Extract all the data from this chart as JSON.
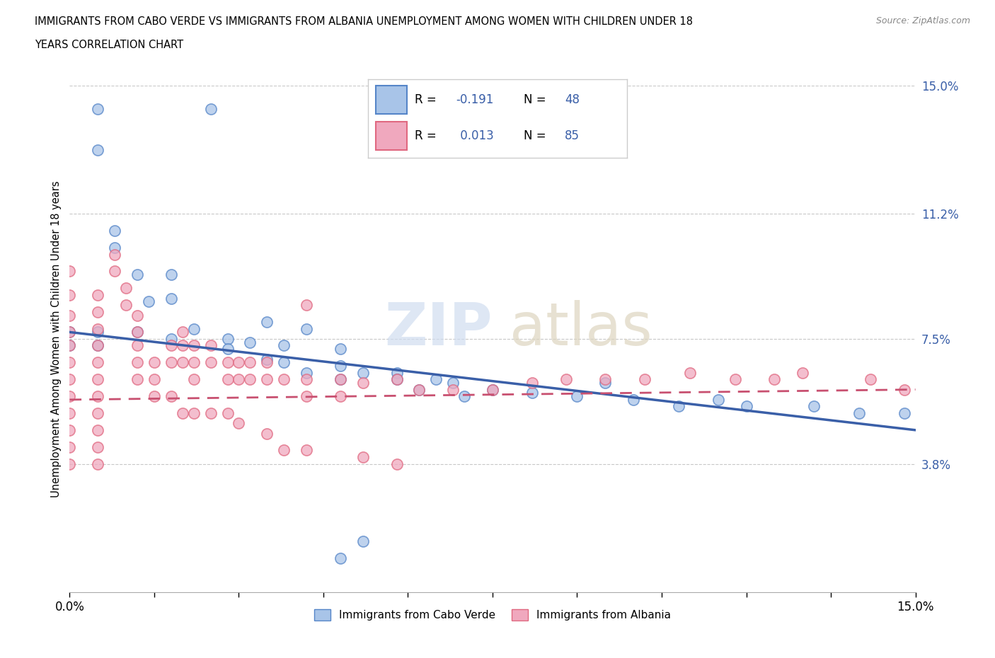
{
  "title_line1": "IMMIGRANTS FROM CABO VERDE VS IMMIGRANTS FROM ALBANIA UNEMPLOYMENT AMONG WOMEN WITH CHILDREN UNDER 18",
  "title_line2": "YEARS CORRELATION CHART",
  "source": "Source: ZipAtlas.com",
  "ylabel": "Unemployment Among Women with Children Under 18 years",
  "xlim": [
    0.0,
    0.15
  ],
  "ylim": [
    0.0,
    0.15
  ],
  "yticks": [
    0.038,
    0.075,
    0.112,
    0.15
  ],
  "ytick_labels": [
    "3.8%",
    "7.5%",
    "11.2%",
    "15.0%"
  ],
  "xticks": [
    0.0,
    0.015,
    0.03,
    0.045,
    0.06,
    0.075,
    0.09,
    0.105,
    0.12,
    0.135,
    0.15
  ],
  "xtick_labels": [
    "0.0%",
    "",
    "",
    "",
    "",
    "",
    "",
    "",
    "",
    "",
    "15.0%"
  ],
  "hlines": [
    0.038,
    0.075,
    0.112,
    0.15
  ],
  "cabo_verde_color": "#a8c4e8",
  "albania_color": "#f0a8be",
  "cabo_verde_edge_color": "#5585c8",
  "albania_edge_color": "#e06880",
  "cabo_verde_line_color": "#3a5fa8",
  "albania_line_color": "#c85070",
  "cabo_verde_R": "-0.191",
  "cabo_verde_N": "48",
  "albania_R": "0.013",
  "albania_N": "85",
  "cv_trend_x": [
    0.0,
    0.15
  ],
  "cv_trend_y": [
    0.077,
    0.048
  ],
  "alb_trend_x": [
    0.0,
    0.15
  ],
  "alb_trend_y": [
    0.057,
    0.06
  ],
  "cabo_verde_scatter": [
    [
      0.005,
      0.143
    ],
    [
      0.005,
      0.131
    ],
    [
      0.008,
      0.107
    ],
    [
      0.008,
      0.102
    ],
    [
      0.025,
      0.143
    ],
    [
      0.012,
      0.094
    ],
    [
      0.014,
      0.086
    ],
    [
      0.018,
      0.094
    ],
    [
      0.018,
      0.087
    ],
    [
      0.0,
      0.077
    ],
    [
      0.0,
      0.073
    ],
    [
      0.005,
      0.077
    ],
    [
      0.005,
      0.073
    ],
    [
      0.012,
      0.077
    ],
    [
      0.018,
      0.075
    ],
    [
      0.022,
      0.078
    ],
    [
      0.028,
      0.075
    ],
    [
      0.028,
      0.072
    ],
    [
      0.032,
      0.074
    ],
    [
      0.035,
      0.069
    ],
    [
      0.038,
      0.073
    ],
    [
      0.042,
      0.078
    ],
    [
      0.048,
      0.072
    ],
    [
      0.048,
      0.067
    ],
    [
      0.052,
      0.065
    ],
    [
      0.058,
      0.065
    ],
    [
      0.065,
      0.063
    ],
    [
      0.048,
      0.063
    ],
    [
      0.058,
      0.063
    ],
    [
      0.068,
      0.062
    ],
    [
      0.075,
      0.06
    ],
    [
      0.082,
      0.059
    ],
    [
      0.09,
      0.058
    ],
    [
      0.095,
      0.062
    ],
    [
      0.1,
      0.057
    ],
    [
      0.108,
      0.055
    ],
    [
      0.115,
      0.057
    ],
    [
      0.12,
      0.055
    ],
    [
      0.132,
      0.055
    ],
    [
      0.14,
      0.053
    ],
    [
      0.148,
      0.053
    ],
    [
      0.062,
      0.06
    ],
    [
      0.07,
      0.058
    ],
    [
      0.052,
      0.015
    ],
    [
      0.048,
      0.01
    ],
    [
      0.035,
      0.08
    ],
    [
      0.038,
      0.068
    ],
    [
      0.042,
      0.065
    ]
  ],
  "albania_scatter": [
    [
      0.0,
      0.095
    ],
    [
      0.0,
      0.088
    ],
    [
      0.0,
      0.082
    ],
    [
      0.0,
      0.077
    ],
    [
      0.0,
      0.073
    ],
    [
      0.0,
      0.068
    ],
    [
      0.0,
      0.063
    ],
    [
      0.0,
      0.058
    ],
    [
      0.0,
      0.053
    ],
    [
      0.0,
      0.048
    ],
    [
      0.0,
      0.043
    ],
    [
      0.0,
      0.038
    ],
    [
      0.005,
      0.088
    ],
    [
      0.005,
      0.083
    ],
    [
      0.005,
      0.078
    ],
    [
      0.005,
      0.073
    ],
    [
      0.005,
      0.068
    ],
    [
      0.005,
      0.063
    ],
    [
      0.005,
      0.058
    ],
    [
      0.005,
      0.053
    ],
    [
      0.005,
      0.048
    ],
    [
      0.005,
      0.043
    ],
    [
      0.005,
      0.038
    ],
    [
      0.008,
      0.1
    ],
    [
      0.008,
      0.095
    ],
    [
      0.01,
      0.09
    ],
    [
      0.01,
      0.085
    ],
    [
      0.012,
      0.082
    ],
    [
      0.012,
      0.077
    ],
    [
      0.012,
      0.073
    ],
    [
      0.012,
      0.068
    ],
    [
      0.015,
      0.068
    ],
    [
      0.015,
      0.063
    ],
    [
      0.018,
      0.073
    ],
    [
      0.018,
      0.068
    ],
    [
      0.02,
      0.077
    ],
    [
      0.02,
      0.073
    ],
    [
      0.02,
      0.068
    ],
    [
      0.022,
      0.073
    ],
    [
      0.022,
      0.068
    ],
    [
      0.022,
      0.063
    ],
    [
      0.025,
      0.073
    ],
    [
      0.025,
      0.068
    ],
    [
      0.028,
      0.068
    ],
    [
      0.028,
      0.063
    ],
    [
      0.03,
      0.068
    ],
    [
      0.03,
      0.063
    ],
    [
      0.032,
      0.068
    ],
    [
      0.032,
      0.063
    ],
    [
      0.035,
      0.068
    ],
    [
      0.035,
      0.063
    ],
    [
      0.038,
      0.063
    ],
    [
      0.042,
      0.063
    ],
    [
      0.042,
      0.058
    ],
    [
      0.048,
      0.063
    ],
    [
      0.048,
      0.058
    ],
    [
      0.052,
      0.062
    ],
    [
      0.058,
      0.063
    ],
    [
      0.062,
      0.06
    ],
    [
      0.068,
      0.06
    ],
    [
      0.075,
      0.06
    ],
    [
      0.082,
      0.062
    ],
    [
      0.088,
      0.063
    ],
    [
      0.095,
      0.063
    ],
    [
      0.102,
      0.063
    ],
    [
      0.11,
      0.065
    ],
    [
      0.118,
      0.063
    ],
    [
      0.125,
      0.063
    ],
    [
      0.13,
      0.065
    ],
    [
      0.142,
      0.063
    ],
    [
      0.148,
      0.06
    ],
    [
      0.012,
      0.063
    ],
    [
      0.015,
      0.058
    ],
    [
      0.018,
      0.058
    ],
    [
      0.02,
      0.053
    ],
    [
      0.022,
      0.053
    ],
    [
      0.025,
      0.053
    ],
    [
      0.028,
      0.053
    ],
    [
      0.03,
      0.05
    ],
    [
      0.035,
      0.047
    ],
    [
      0.038,
      0.042
    ],
    [
      0.042,
      0.042
    ],
    [
      0.052,
      0.04
    ],
    [
      0.058,
      0.038
    ],
    [
      0.042,
      0.085
    ]
  ]
}
